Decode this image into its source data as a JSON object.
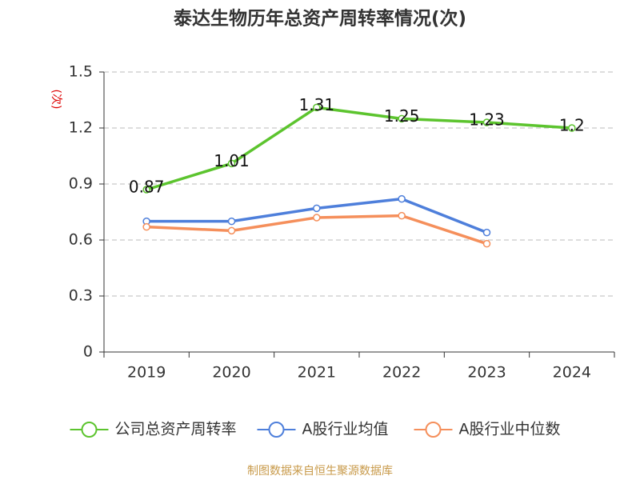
{
  "chart_data": {
    "type": "line",
    "title": "泰达生物历年总资产周转率情况(次)",
    "y_axis_label": "(次)",
    "source": "制图数据来自恒生聚源数据库",
    "categories": [
      "2019",
      "2020",
      "2021",
      "2022",
      "2023",
      "2024"
    ],
    "series": [
      {
        "name": "公司总资产周转率",
        "color": "#5cc42e",
        "values": [
          0.87,
          1.01,
          1.31,
          1.25,
          1.23,
          1.2
        ],
        "show_labels": true
      },
      {
        "name": "A股行业均值",
        "color": "#4e7fdb",
        "values": [
          0.7,
          0.7,
          0.77,
          0.82,
          0.64,
          null
        ],
        "show_labels": false
      },
      {
        "name": "A股行业中位数",
        "color": "#f58f5b",
        "values": [
          0.67,
          0.65,
          0.72,
          0.73,
          0.58,
          null
        ],
        "show_labels": false
      }
    ],
    "ylim": [
      0,
      1.5
    ],
    "yticks": [
      0,
      0.3,
      0.6,
      0.9,
      1.2,
      1.5
    ],
    "grid": true,
    "legend": "bottom"
  }
}
